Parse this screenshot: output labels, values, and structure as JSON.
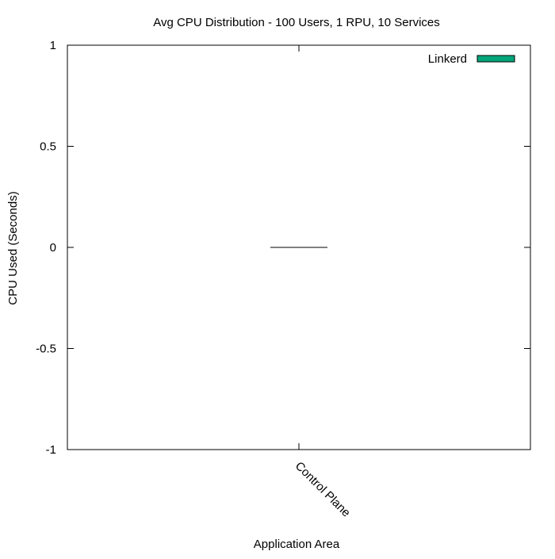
{
  "chart_data": {
    "type": "bar",
    "title": "Avg CPU Distribution - 100 Users, 1 RPU, 10 Services",
    "xlabel": "Application Area",
    "ylabel": "CPU Used (Seconds)",
    "categories": [
      "Control Plane"
    ],
    "series": [
      {
        "name": "Linkerd",
        "values": [
          0
        ],
        "color": "#00a67a"
      }
    ],
    "ylim": [
      -1,
      1
    ],
    "yticks": [
      -1,
      -0.5,
      0,
      0.5,
      1
    ],
    "ytick_labels": [
      "-1",
      "-0.5",
      "0",
      "0.5",
      "1"
    ],
    "grid": false,
    "legend": "top-right"
  }
}
